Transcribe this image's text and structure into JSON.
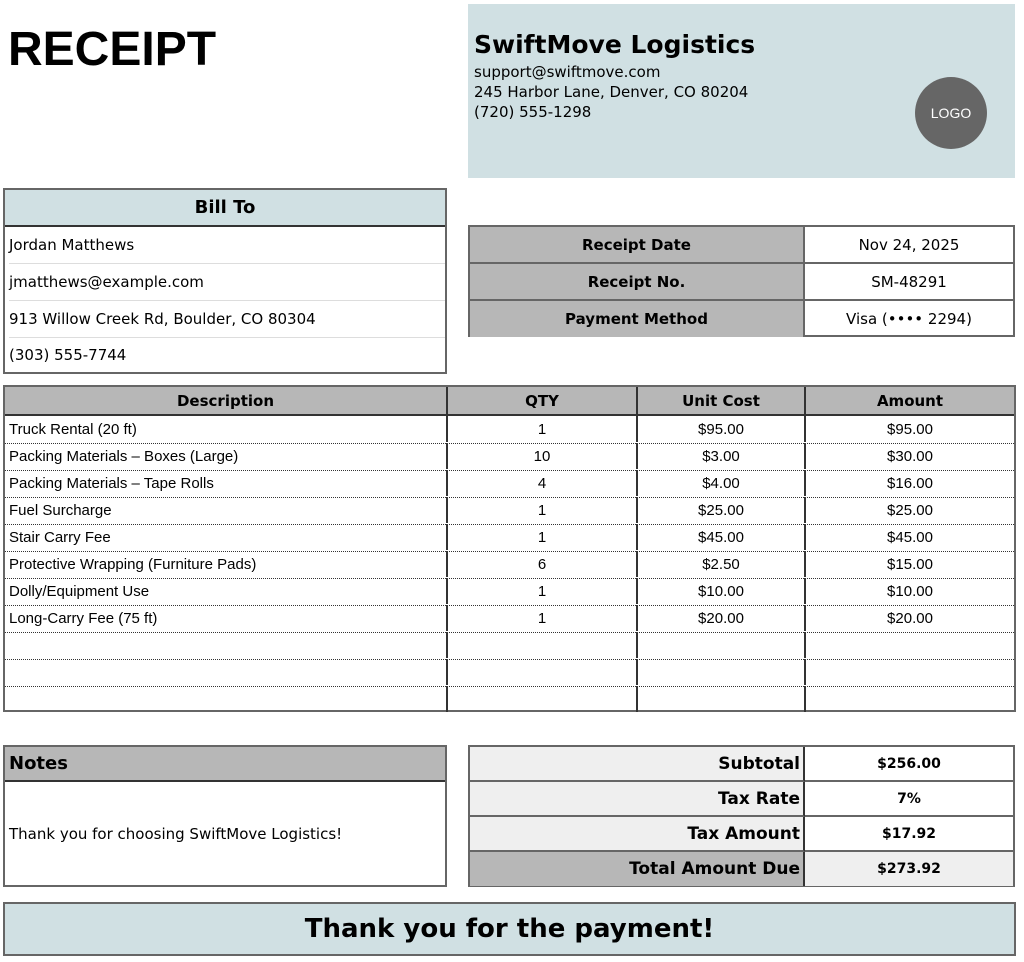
{
  "title": "RECEIPT",
  "company": {
    "name": "SwiftMove Logistics",
    "email": "support@swiftmove.com",
    "address": "245 Harbor Lane, Denver, CO 80204",
    "phone": "(720) 555-1298",
    "logo": "LOGO"
  },
  "bill_to": {
    "heading": "Bill To",
    "name": "Jordan Matthews",
    "email": "jmatthews@example.com",
    "address": "913 Willow Creek Rd, Boulder, CO 80304",
    "phone": "(303) 555-7744"
  },
  "receipt_info": [
    {
      "label": "Receipt Date",
      "value": "Nov 24, 2025"
    },
    {
      "label": "Receipt No.",
      "value": "SM-48291"
    },
    {
      "label": "Payment Method",
      "value": "Visa (•••• 2294)"
    }
  ],
  "items": {
    "headers": [
      "Description",
      "QTY",
      "Unit Cost",
      "Amount"
    ],
    "rows": [
      [
        "Truck Rental (20 ft)",
        "1",
        "$95.00",
        "$95.00"
      ],
      [
        "Packing Materials – Boxes (Large)",
        "10",
        "$3.00",
        "$30.00"
      ],
      [
        "Packing Materials – Tape Rolls",
        "4",
        "$4.00",
        "$16.00"
      ],
      [
        "Fuel Surcharge",
        "1",
        "$25.00",
        "$25.00"
      ],
      [
        "Stair Carry Fee",
        "1",
        "$45.00",
        "$45.00"
      ],
      [
        "Protective Wrapping (Furniture Pads)",
        "6",
        "$2.50",
        "$15.00"
      ],
      [
        "Dolly/Equipment Use",
        "1",
        "$10.00",
        "$10.00"
      ],
      [
        "Long-Carry Fee (75 ft)",
        "1",
        "$20.00",
        "$20.00"
      ],
      [
        "",
        "",
        "",
        ""
      ],
      [
        "",
        "",
        "",
        ""
      ],
      [
        "",
        "",
        "",
        ""
      ]
    ]
  },
  "notes": {
    "heading": "Notes",
    "text": "Thank you for choosing SwiftMove Logistics!"
  },
  "summary": [
    {
      "label": "Subtotal",
      "value": "$256.00"
    },
    {
      "label": "Tax Rate",
      "value": "7%"
    },
    {
      "label": "Tax Amount",
      "value": "$17.92"
    },
    {
      "label": "Total Amount Due",
      "value": "$273.92"
    }
  ],
  "footer": "Thank you for the payment!",
  "colors": {
    "accent": "#d0e0e3",
    "header_gray": "#b7b7b7",
    "light_gray": "#efefef",
    "logo": "#666666"
  }
}
